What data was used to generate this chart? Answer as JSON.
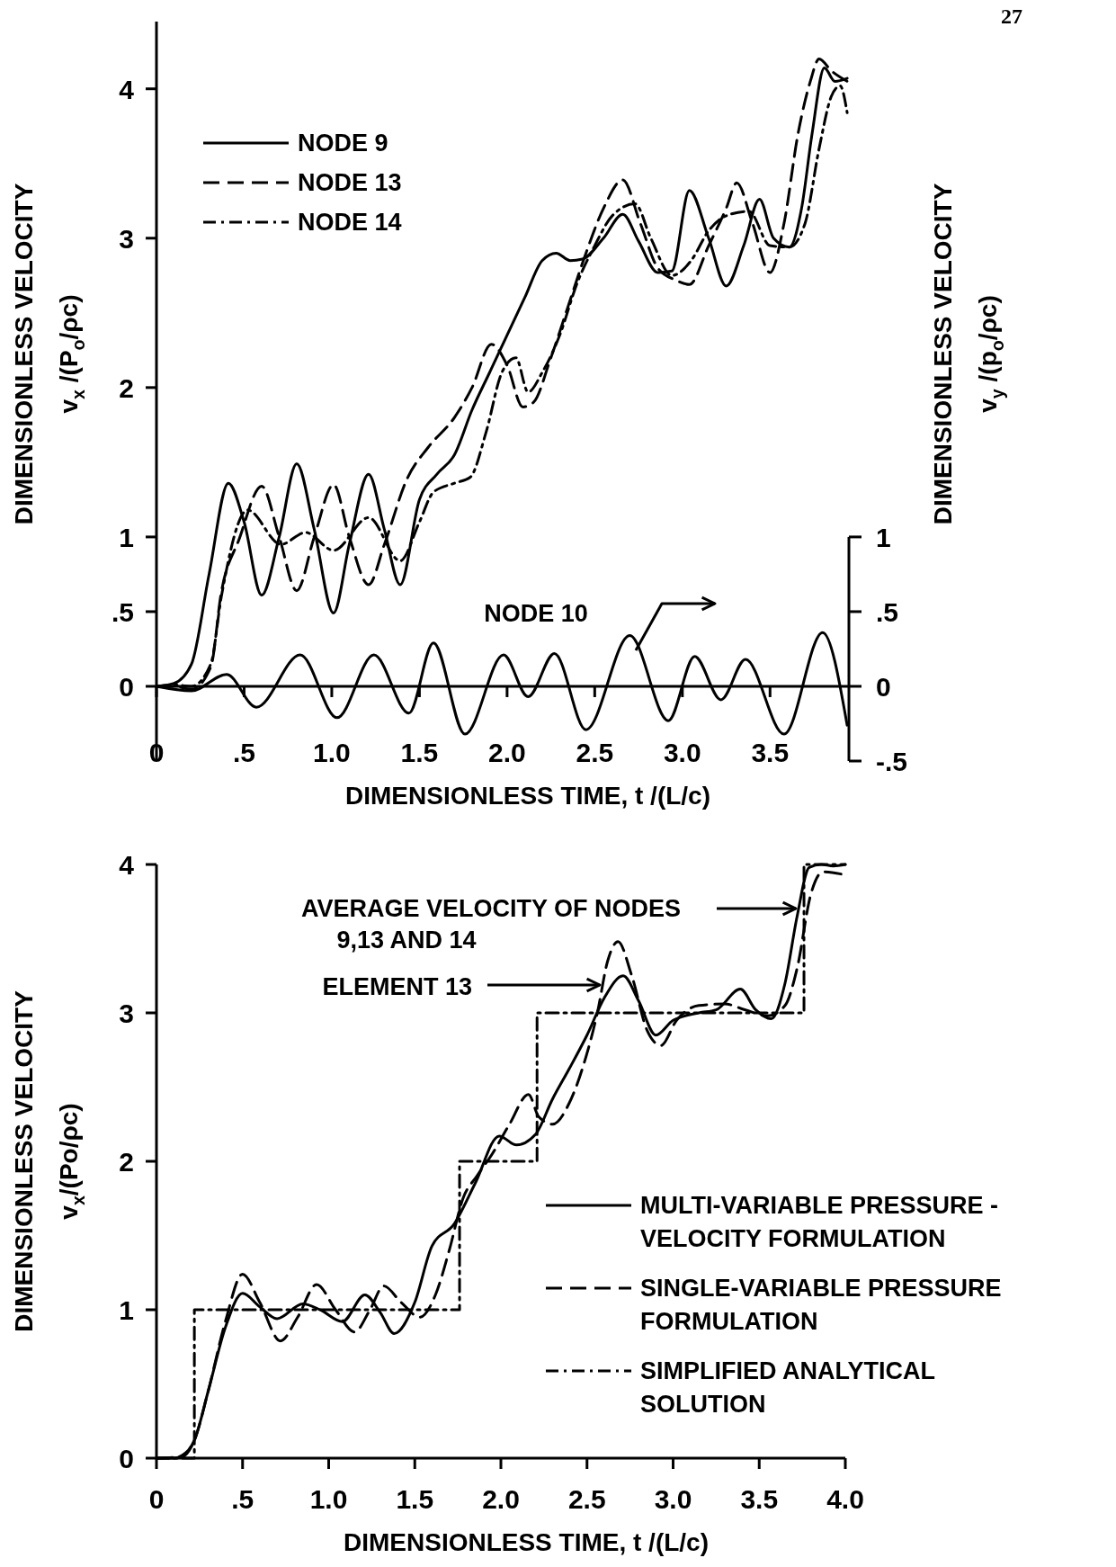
{
  "chart_data": [
    {
      "type": "line",
      "xlabel": "DIMENSIONLESS TIME, t /(L/c)",
      "ylabel": "DIMENSIONLESS VELOCITY\nv$_{x}$ /(P$_{o}$/ρc)",
      "y2label": "DIMENSIONLESS VELOCITY\nv$_{y}$ /(p$_{o}$/ρc)",
      "xlim": [
        0,
        3.95
      ],
      "ylim": [
        -0.5,
        4.45
      ],
      "y2lim": [
        -0.5,
        1
      ],
      "xticks": [
        0,
        {
          "value": 0.5,
          "label": ".5"
        },
        {
          "value": 1,
          "label": "1.0"
        },
        1.5,
        {
          "value": 2,
          "label": "2.0"
        },
        2.5,
        {
          "value": 3,
          "label": "3.0"
        },
        3.5
      ],
      "yticks": [
        0,
        {
          "value": 0.5,
          "label": ".5"
        },
        1,
        2,
        3,
        4
      ],
      "y2ticks": [
        {
          "value": -0.5,
          "label": "-.5"
        },
        0,
        {
          "value": 0.5,
          "label": ".5"
        },
        1
      ],
      "legend": "top left",
      "annotations": [
        "27"
      ],
      "series": [
        {
          "name": "NODE 9",
          "color": "#000000",
          "line_style": "solid",
          "x": [
            0,
            0.1,
            0.2,
            0.3,
            0.41,
            0.5,
            0.6,
            0.7,
            0.8,
            0.9,
            1.01,
            1.1,
            1.21,
            1.3,
            1.39,
            1.5,
            1.6,
            1.7,
            1.8,
            1.9,
            2.0,
            2.1,
            2.2,
            2.28,
            2.36,
            2.43,
            2.55,
            2.66,
            2.75,
            2.86,
            2.94,
            3.04,
            3.15,
            3.25,
            3.35,
            3.44,
            3.52,
            3.61,
            3.68,
            3.74,
            3.81,
            3.87,
            3.94
          ],
          "values": [
            0,
            0.02,
            0.15,
            0.75,
            1.36,
            1.1,
            0.61,
            1.0,
            1.49,
            1.05,
            0.49,
            0.95,
            1.42,
            1.05,
            0.68,
            1.25,
            1.42,
            1.55,
            1.85,
            2.1,
            2.35,
            2.6,
            2.85,
            2.9,
            2.85,
            2.86,
            3.0,
            3.16,
            2.98,
            2.77,
            2.78,
            3.32,
            3.0,
            2.68,
            2.95,
            3.26,
            3.0,
            2.94,
            3.2,
            3.7,
            4.14,
            4.05,
            4.07
          ]
        },
        {
          "name": "NODE 13",
          "color": "#000000",
          "line_style": "dashed",
          "x": [
            0,
            0.1,
            0.2,
            0.31,
            0.37,
            0.47,
            0.6,
            0.7,
            0.8,
            0.9,
            1.01,
            1.1,
            1.21,
            1.3,
            1.43,
            1.55,
            1.7,
            1.8,
            1.91,
            2.0,
            2.09,
            2.15,
            2.25,
            2.35,
            2.45,
            2.55,
            2.66,
            2.76,
            2.86,
            2.96,
            3.04,
            3.15,
            3.25,
            3.31,
            3.4,
            3.5,
            3.58,
            3.66,
            3.73,
            3.78,
            3.85,
            3.94
          ],
          "values": [
            0,
            0.0,
            -0.02,
            0.13,
            0.63,
            0.98,
            1.34,
            1.0,
            0.64,
            1.0,
            1.35,
            1.0,
            0.68,
            0.95,
            1.39,
            1.6,
            1.8,
            2.0,
            2.29,
            2.15,
            1.87,
            1.9,
            2.2,
            2.55,
            2.9,
            3.2,
            3.39,
            3.1,
            2.8,
            2.72,
            2.69,
            2.95,
            3.2,
            3.37,
            3.1,
            2.77,
            3.1,
            3.7,
            4.05,
            4.2,
            4.12,
            4.05
          ]
        },
        {
          "name": "NODE 14",
          "color": "#000000",
          "line_style": "dotted",
          "x": [
            0,
            0.1,
            0.2,
            0.31,
            0.37,
            0.52,
            0.71,
            0.85,
            1.01,
            1.21,
            1.39,
            1.5,
            1.58,
            1.7,
            1.79,
            1.88,
            1.97,
            2.05,
            2.12,
            2.2,
            2.3,
            2.4,
            2.5,
            2.6,
            2.73,
            2.82,
            2.94,
            3.05,
            3.15,
            3.25,
            3.38,
            3.5,
            3.61,
            3.7,
            3.78,
            3.85,
            3.9,
            3.94
          ],
          "values": [
            0,
            0.01,
            0.0,
            0.15,
            0.6,
            1.18,
            0.95,
            1.03,
            0.91,
            1.13,
            0.84,
            1.1,
            1.3,
            1.36,
            1.4,
            1.7,
            2.1,
            2.2,
            1.97,
            2.1,
            2.35,
            2.7,
            2.95,
            3.15,
            3.23,
            3.0,
            2.75,
            2.85,
            3.05,
            3.15,
            3.18,
            2.95,
            2.94,
            3.1,
            3.6,
            3.95,
            4.02,
            3.84
          ]
        },
        {
          "name": "NODE 10",
          "color": "#000000",
          "line_style": "solid",
          "axis": "y2",
          "x": [
            0,
            0.2,
            0.4,
            0.57,
            0.82,
            1.03,
            1.24,
            1.44,
            1.58,
            1.76,
            1.98,
            2.12,
            2.27,
            2.45,
            2.7,
            2.92,
            3.07,
            3.22,
            3.36,
            3.58,
            3.8,
            3.94
          ],
          "values": [
            0,
            -0.03,
            0.08,
            -0.14,
            0.21,
            -0.21,
            0.21,
            -0.18,
            0.29,
            -0.32,
            0.21,
            -0.07,
            0.22,
            -0.29,
            0.34,
            -0.23,
            0.2,
            -0.09,
            0.18,
            -0.32,
            0.36,
            -0.26
          ]
        }
      ]
    },
    {
      "type": "line",
      "xlabel": "DIMENSIONLESS TIME, t /(L/c)",
      "ylabel": "DIMENSIONLESS VELOCITY\nv$_{x}$/(Po/ρc)",
      "xlim": [
        0,
        4
      ],
      "ylim": [
        0,
        4
      ],
      "xticks": [
        0,
        {
          "value": 0.5,
          "label": ".5"
        },
        {
          "value": 1,
          "label": "1.0"
        },
        1.5,
        {
          "value": 2,
          "label": "2.0"
        },
        2.5,
        {
          "value": 3,
          "label": "3.0"
        },
        3.5,
        {
          "value": 4,
          "label": "4.0"
        }
      ],
      "yticks": [
        0,
        1,
        2,
        3,
        4
      ],
      "legend": "bottom right",
      "annotations": [
        "AVERAGE VELOCITY OF NODES\n9,13 AND 14",
        "ELEMENT 13"
      ],
      "series": [
        {
          "name": "MULTI-VARIABLE PRESSURE -\nVELOCITY FORMULATION",
          "color": "#000000",
          "line_style": "solid",
          "x": [
            0,
            0.1,
            0.15,
            0.22,
            0.3,
            0.4,
            0.5,
            0.6,
            0.7,
            0.85,
            0.95,
            1.08,
            1.21,
            1.3,
            1.38,
            1.5,
            1.6,
            1.73,
            1.85,
            1.99,
            2.09,
            2.2,
            2.3,
            2.4,
            2.5,
            2.6,
            2.71,
            2.8,
            2.9,
            3.0,
            3.15,
            3.25,
            3.39,
            3.48,
            3.57,
            3.65,
            3.72,
            3.79,
            3.86,
            3.93,
            4.0
          ],
          "values": [
            0,
            0,
            0.02,
            0.12,
            0.45,
            0.88,
            1.11,
            1.02,
            0.94,
            1.04,
            1.0,
            0.92,
            1.1,
            0.98,
            0.84,
            1.05,
            1.43,
            1.58,
            1.85,
            2.17,
            2.11,
            2.18,
            2.42,
            2.63,
            2.85,
            3.1,
            3.25,
            3.08,
            2.85,
            2.95,
            3.0,
            3.02,
            3.16,
            3.02,
            2.96,
            3.2,
            3.65,
            3.98,
            4.0,
            3.99,
            4.0
          ]
        },
        {
          "name": "SINGLE-VARIABLE PRESSURE\nFORMULATION",
          "color": "#000000",
          "line_style": "dashed",
          "x": [
            0,
            0.15,
            0.22,
            0.3,
            0.4,
            0.5,
            0.6,
            0.72,
            0.82,
            0.93,
            1.04,
            1.15,
            1.24,
            1.32,
            1.42,
            1.53,
            1.62,
            1.7,
            1.78,
            1.86,
            1.95,
            2.05,
            2.16,
            2.22,
            2.3,
            2.4,
            2.48,
            2.56,
            2.62,
            2.68,
            2.76,
            2.85,
            2.93,
            3.02,
            3.15,
            3.3,
            3.42,
            3.55,
            3.65,
            3.72,
            3.8,
            3.87,
            4.0
          ],
          "values": [
            0,
            0.01,
            0.12,
            0.45,
            0.92,
            1.24,
            1.05,
            0.79,
            0.95,
            1.17,
            1.0,
            0.85,
            1.0,
            1.16,
            1.05,
            0.95,
            1.1,
            1.4,
            1.75,
            1.9,
            2.05,
            2.25,
            2.45,
            2.3,
            2.25,
            2.4,
            2.65,
            3.0,
            3.35,
            3.48,
            3.25,
            2.88,
            2.78,
            2.95,
            3.05,
            3.06,
            3.02,
            2.98,
            3.05,
            3.3,
            3.8,
            3.95,
            3.93
          ]
        },
        {
          "name": "SIMPLIFIED ANALYTICAL\nSOLUTION",
          "color": "#000000",
          "line_style": "dotted",
          "type": "step",
          "x": [
            0,
            0.22,
            1.76,
            2.21,
            3.76,
            4.0
          ],
          "values": [
            0,
            1,
            2,
            3,
            4,
            4
          ]
        }
      ]
    }
  ]
}
